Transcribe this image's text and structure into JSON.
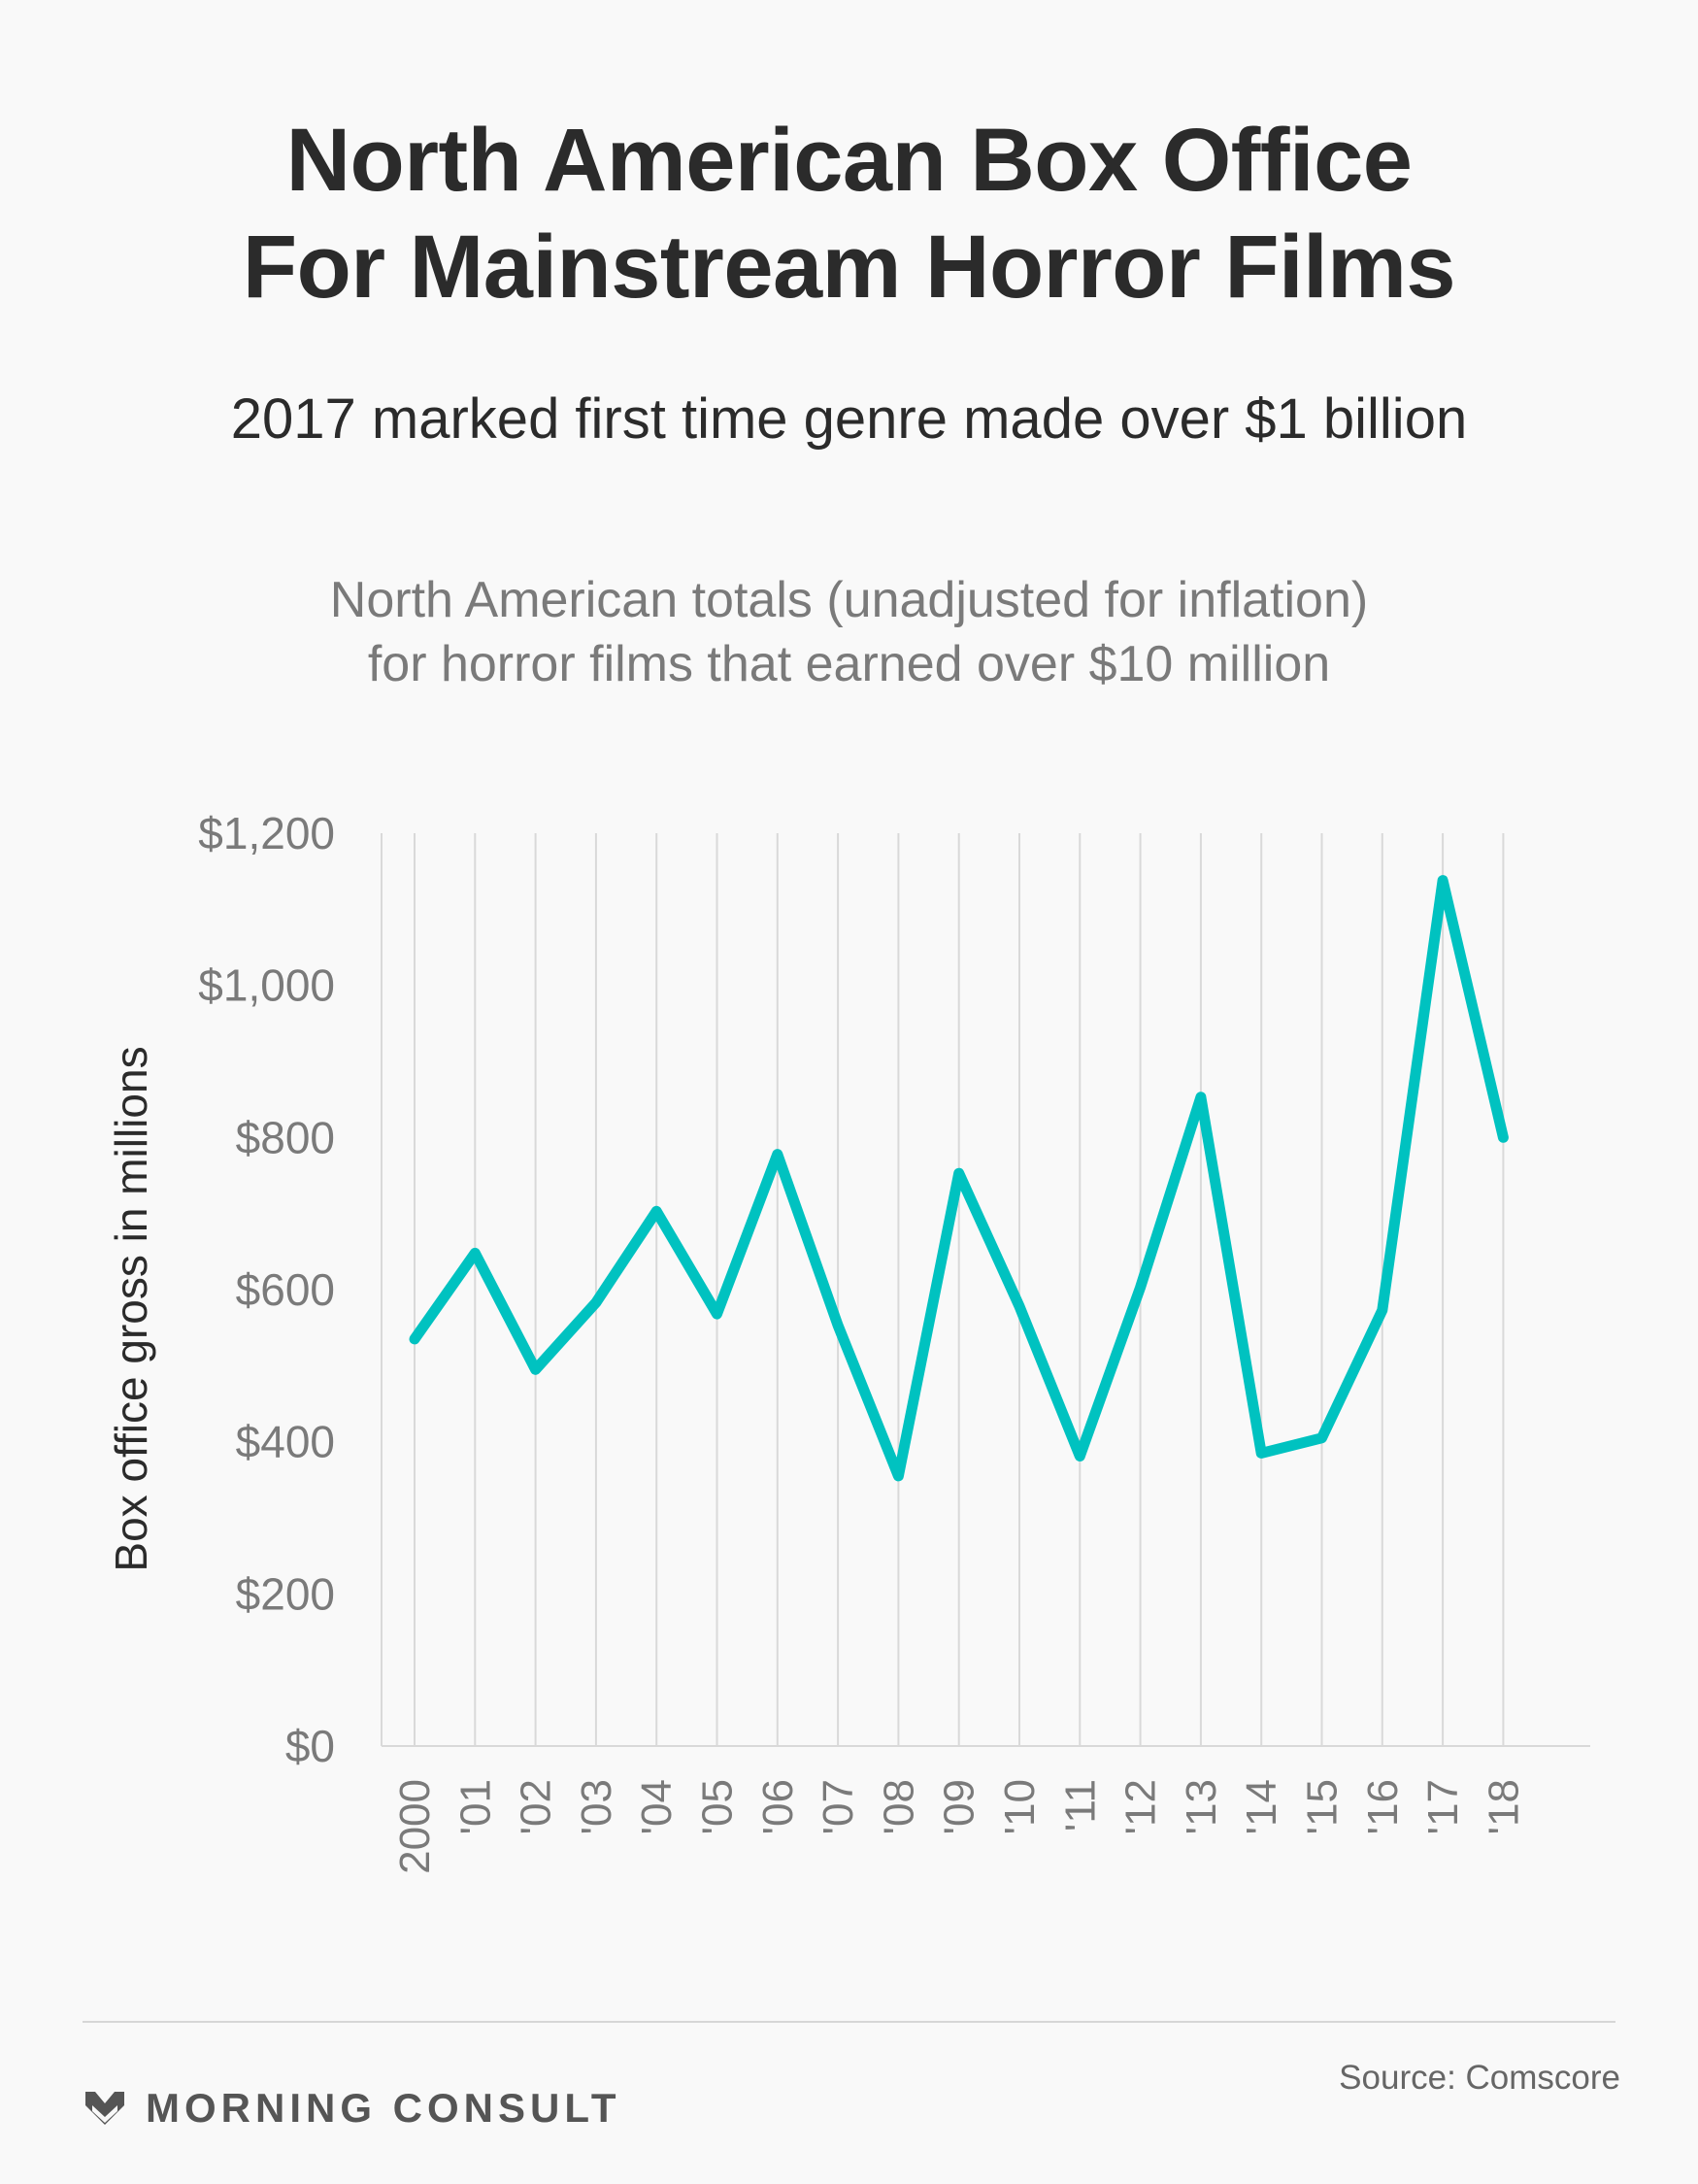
{
  "header": {
    "title_line1": "North American Box Office",
    "title_line2": "For Mainstream Horror Films",
    "subtitle": "2017 marked first time genre made over $1 billion",
    "description_line1": "North American totals (unadjusted for inflation)",
    "description_line2": "for horror films that earned over $10 million"
  },
  "chart_data": {
    "type": "line",
    "title": "North American Box Office For Mainstream Horror Films",
    "ylabel": "Box office gross in millions",
    "xlabel": "",
    "ylim": [
      0,
      1200
    ],
    "yticks": [
      0,
      200,
      400,
      600,
      800,
      1000,
      1200
    ],
    "ytick_labels": [
      "$0",
      "$200",
      "$400",
      "$600",
      "$800",
      "$1,000",
      "$1,200"
    ],
    "categories": [
      "2000",
      "'01",
      "'02",
      "'03",
      "'04",
      "'05",
      "'06",
      "'07",
      "'08",
      "'09",
      "'10",
      "'11",
      "'12",
      "'13",
      "'14",
      "'15",
      "'16",
      "'17",
      "'18"
    ],
    "series": [
      {
        "color": "#00c2c0",
        "values": [
          535,
          648,
          495,
          583,
          703,
          568,
          778,
          553,
          355,
          753,
          578,
          381,
          603,
          853,
          385,
          405,
          573,
          1138,
          800
        ]
      }
    ],
    "grid": "vertical",
    "gridline_color": "#d9d9d9"
  },
  "footer": {
    "brand": "MORNING CONSULT",
    "source": "Source: Comscore"
  }
}
